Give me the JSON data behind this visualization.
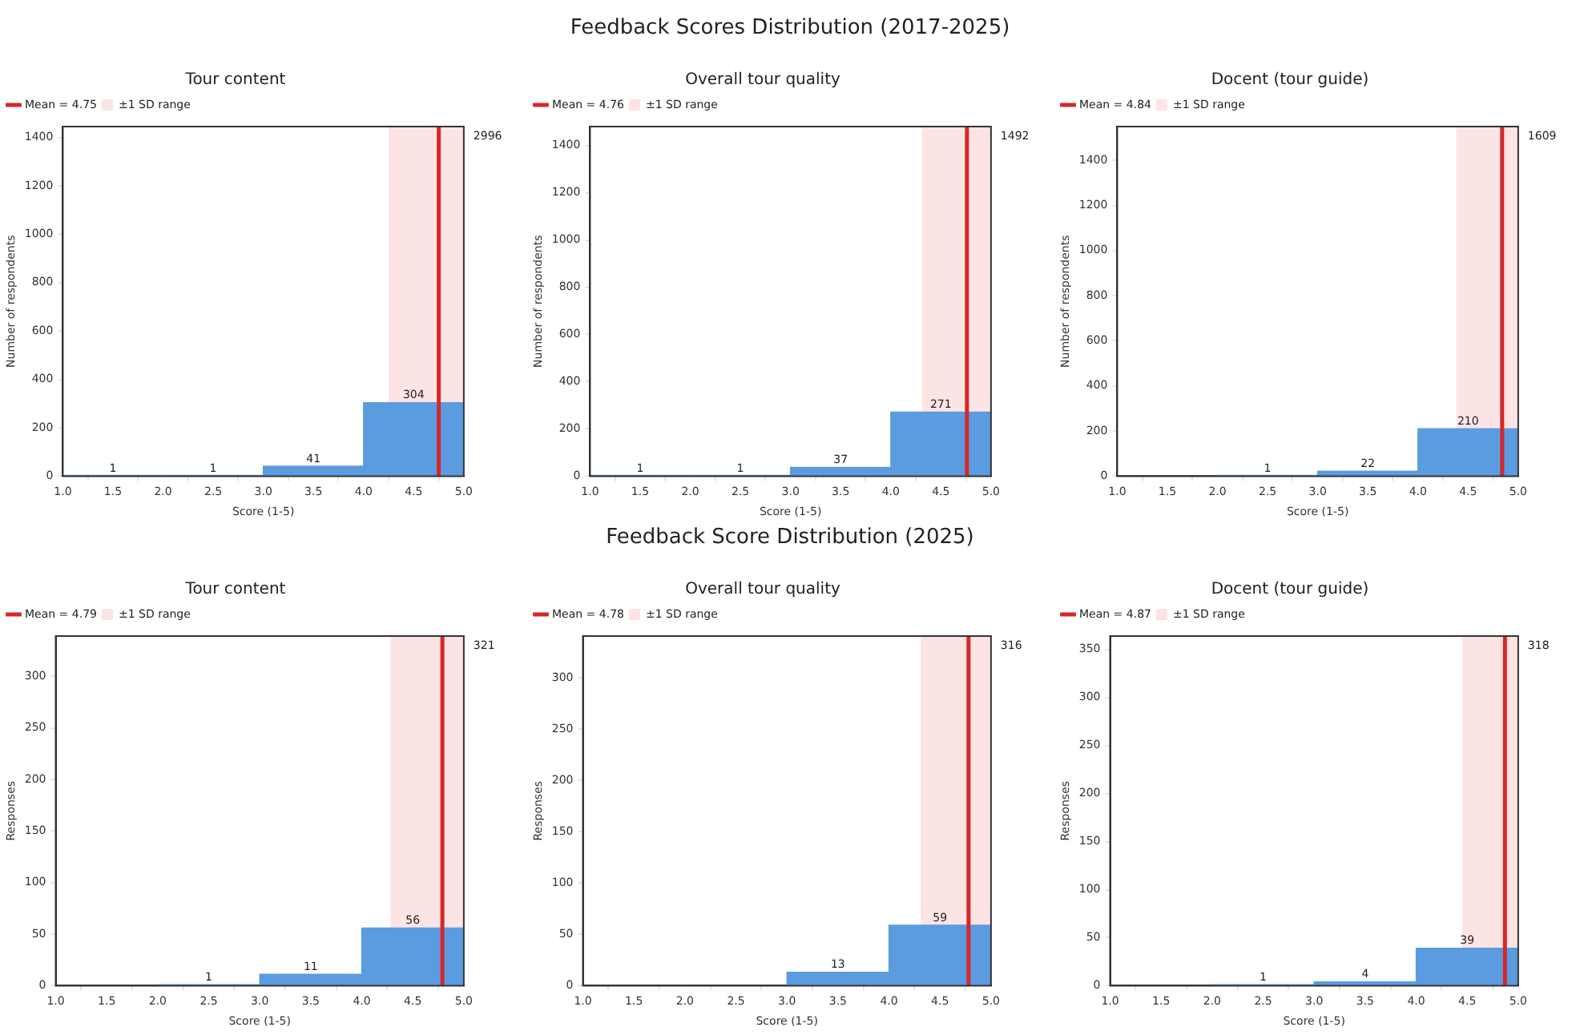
{
  "chart_data": [
    {
      "type": "other",
      "title": "Feedback Scores Distribution (2017-2025)"
    },
    {
      "type": "histogram",
      "title": "Tour content",
      "xlabel": "Score (1-5)",
      "ylabel": "Number of respondents",
      "bins": [
        1,
        2,
        3,
        4,
        5
      ],
      "values": [
        1,
        1,
        41,
        304
      ],
      "value_labels": [
        "1",
        "1",
        "41",
        "304"
      ],
      "color": "#5b9be0",
      "xlim": [
        1,
        5
      ],
      "xticks": [
        {
          "value": 1,
          "label": "1.0"
        },
        {
          "value": 1.5,
          "label": "1.5"
        },
        {
          "value": 2,
          "label": "2.0"
        },
        {
          "value": 2.5,
          "label": "2.5"
        },
        {
          "value": 3,
          "label": "3.0"
        },
        {
          "value": 3.5,
          "label": "3.5"
        },
        {
          "value": 4,
          "label": "4.0"
        },
        {
          "value": 4.5,
          "label": "4.5"
        },
        {
          "value": 5,
          "label": "5.0"
        }
      ],
      "ylim": [
        0,
        1445
      ],
      "yticks": [
        0,
        200,
        400,
        600,
        800,
        1000,
        1200,
        1400
      ],
      "bands": [
        {
          "axis": "x",
          "from": 4.25,
          "to": 5,
          "label": "±1 SD range",
          "color": "#fde4e4"
        }
      ],
      "ref_lines": [
        {
          "axis": "x",
          "value": 4.75,
          "label": "Mean = 4.75",
          "color": "#d62728"
        }
      ],
      "legend": "top left",
      "annotations": [
        "2996"
      ]
    },
    {
      "type": "histogram",
      "title": "Overall tour quality",
      "xlabel": "Score (1-5)",
      "ylabel": "Number of respondents",
      "bins": [
        1,
        2,
        3,
        4,
        5
      ],
      "values": [
        1,
        1,
        37,
        271
      ],
      "value_labels": [
        "1",
        "1",
        "37",
        "271"
      ],
      "color": "#5b9be0",
      "xlim": [
        1,
        5
      ],
      "xticks": [
        {
          "value": 1,
          "label": "1.0"
        },
        {
          "value": 1.5,
          "label": "1.5"
        },
        {
          "value": 2,
          "label": "2.0"
        },
        {
          "value": 2.5,
          "label": "2.5"
        },
        {
          "value": 3,
          "label": "3.0"
        },
        {
          "value": 3.5,
          "label": "3.5"
        },
        {
          "value": 4,
          "label": "4.0"
        },
        {
          "value": 4.5,
          "label": "4.5"
        },
        {
          "value": 5,
          "label": "5.0"
        }
      ],
      "ylim": [
        0,
        1480
      ],
      "yticks": [
        0,
        200,
        400,
        600,
        800,
        1000,
        1200,
        1400
      ],
      "bands": [
        {
          "axis": "x",
          "from": 4.31,
          "to": 5,
          "label": "±1 SD range",
          "color": "#fde4e4"
        }
      ],
      "ref_lines": [
        {
          "axis": "x",
          "value": 4.76,
          "label": "Mean = 4.76",
          "color": "#d62728"
        }
      ],
      "legend": "top left",
      "annotations": [
        "1492"
      ]
    },
    {
      "type": "histogram",
      "title": "Docent (tour guide)",
      "xlabel": "Score (1-5)",
      "ylabel": "Number of respondents",
      "bins": [
        1,
        2,
        3,
        4,
        5
      ],
      "values": [
        0,
        1,
        22,
        210
      ],
      "value_labels": [
        null,
        "1",
        "22",
        "210"
      ],
      "color": "#5b9be0",
      "xlim": [
        1,
        5
      ],
      "xticks": [
        {
          "value": 1,
          "label": "1.0"
        },
        {
          "value": 1.5,
          "label": "1.5"
        },
        {
          "value": 2,
          "label": "2.0"
        },
        {
          "value": 2.5,
          "label": "2.5"
        },
        {
          "value": 3,
          "label": "3.0"
        },
        {
          "value": 3.5,
          "label": "3.5"
        },
        {
          "value": 4,
          "label": "4.0"
        },
        {
          "value": 4.5,
          "label": "4.5"
        },
        {
          "value": 5,
          "label": "5.0"
        }
      ],
      "ylim": [
        0,
        1550
      ],
      "yticks": [
        0,
        200,
        400,
        600,
        800,
        1000,
        1200,
        1400
      ],
      "bands": [
        {
          "axis": "x",
          "from": 4.38,
          "to": 5,
          "label": "±1 SD range",
          "color": "#fde4e4"
        }
      ],
      "ref_lines": [
        {
          "axis": "x",
          "value": 4.84,
          "label": "Mean = 4.84",
          "color": "#d62728"
        }
      ],
      "legend": "top left",
      "annotations": [
        "1609"
      ]
    },
    {
      "type": "other",
      "title": "Feedback Score Distribution (2025)"
    },
    {
      "type": "histogram",
      "title": "Tour content",
      "xlabel": "Score (1-5)",
      "ylabel": "Responses",
      "bins": [
        1,
        2,
        3,
        4,
        5
      ],
      "values": [
        0,
        1,
        11,
        56
      ],
      "value_labels": [
        null,
        "1",
        "11",
        "56"
      ],
      "color": "#5b9be0",
      "xlim": [
        1,
        5
      ],
      "xticks": [
        {
          "value": 1,
          "label": "1.0"
        },
        {
          "value": 1.5,
          "label": "1.5"
        },
        {
          "value": 2,
          "label": "2.0"
        },
        {
          "value": 2.5,
          "label": "2.5"
        },
        {
          "value": 3,
          "label": "3.0"
        },
        {
          "value": 3.5,
          "label": "3.5"
        },
        {
          "value": 4,
          "label": "4.0"
        },
        {
          "value": 4.5,
          "label": "4.5"
        },
        {
          "value": 5,
          "label": "5.0"
        }
      ],
      "ylim": [
        0,
        339
      ],
      "yticks": [
        0,
        50,
        100,
        150,
        200,
        250,
        300
      ],
      "bands": [
        {
          "axis": "x",
          "from": 4.28,
          "to": 5,
          "label": "±1 SD range",
          "color": "#fde4e4"
        }
      ],
      "ref_lines": [
        {
          "axis": "x",
          "value": 4.79,
          "label": "Mean = 4.79",
          "color": "#d62728"
        }
      ],
      "legend": "top left",
      "annotations": [
        "321"
      ]
    },
    {
      "type": "histogram",
      "title": "Overall tour quality",
      "xlabel": "Score (1-5)",
      "ylabel": "Responses",
      "bins": [
        1,
        2,
        3,
        4,
        5
      ],
      "values": [
        0,
        0,
        13,
        59
      ],
      "value_labels": [
        null,
        null,
        "13",
        "59"
      ],
      "color": "#5b9be0",
      "xlim": [
        1,
        5
      ],
      "xticks": [
        {
          "value": 1,
          "label": "1.0"
        },
        {
          "value": 1.5,
          "label": "1.5"
        },
        {
          "value": 2,
          "label": "2.0"
        },
        {
          "value": 2.5,
          "label": "2.5"
        },
        {
          "value": 3,
          "label": "3.0"
        },
        {
          "value": 3.5,
          "label": "3.5"
        },
        {
          "value": 4,
          "label": "4.0"
        },
        {
          "value": 4.5,
          "label": "4.5"
        },
        {
          "value": 5,
          "label": "5.0"
        }
      ],
      "ylim": [
        0,
        341
      ],
      "yticks": [
        0,
        50,
        100,
        150,
        200,
        250,
        300
      ],
      "bands": [
        {
          "axis": "x",
          "from": 4.31,
          "to": 5,
          "label": "±1 SD range",
          "color": "#fde4e4"
        }
      ],
      "ref_lines": [
        {
          "axis": "x",
          "value": 4.78,
          "label": "Mean = 4.78",
          "color": "#d62728"
        }
      ],
      "legend": "top left",
      "annotations": [
        "316"
      ]
    },
    {
      "type": "histogram",
      "title": "Docent (tour guide)",
      "xlabel": "Score (1-5)",
      "ylabel": "Responses",
      "bins": [
        1,
        2,
        3,
        4,
        5
      ],
      "values": [
        0,
        1,
        4,
        39
      ],
      "value_labels": [
        null,
        "1",
        "4",
        "39"
      ],
      "color": "#5b9be0",
      "xlim": [
        1,
        5
      ],
      "xticks": [
        {
          "value": 1,
          "label": "1.0"
        },
        {
          "value": 1.5,
          "label": "1.5"
        },
        {
          "value": 2,
          "label": "2.0"
        },
        {
          "value": 2.5,
          "label": "2.5"
        },
        {
          "value": 3,
          "label": "3.0"
        },
        {
          "value": 3.5,
          "label": "3.5"
        },
        {
          "value": 4,
          "label": "4.0"
        },
        {
          "value": 4.5,
          "label": "4.5"
        },
        {
          "value": 5,
          "label": "5.0"
        }
      ],
      "ylim": [
        0,
        364
      ],
      "yticks": [
        0,
        50,
        100,
        150,
        200,
        250,
        300,
        350
      ],
      "bands": [
        {
          "axis": "x",
          "from": 4.45,
          "to": 5,
          "label": "±1 SD range",
          "color": "#fde4e4"
        }
      ],
      "ref_lines": [
        {
          "axis": "x",
          "value": 4.87,
          "label": "Mean = 4.87",
          "color": "#d62728"
        }
      ],
      "legend": "top left",
      "annotations": [
        "318"
      ]
    }
  ]
}
